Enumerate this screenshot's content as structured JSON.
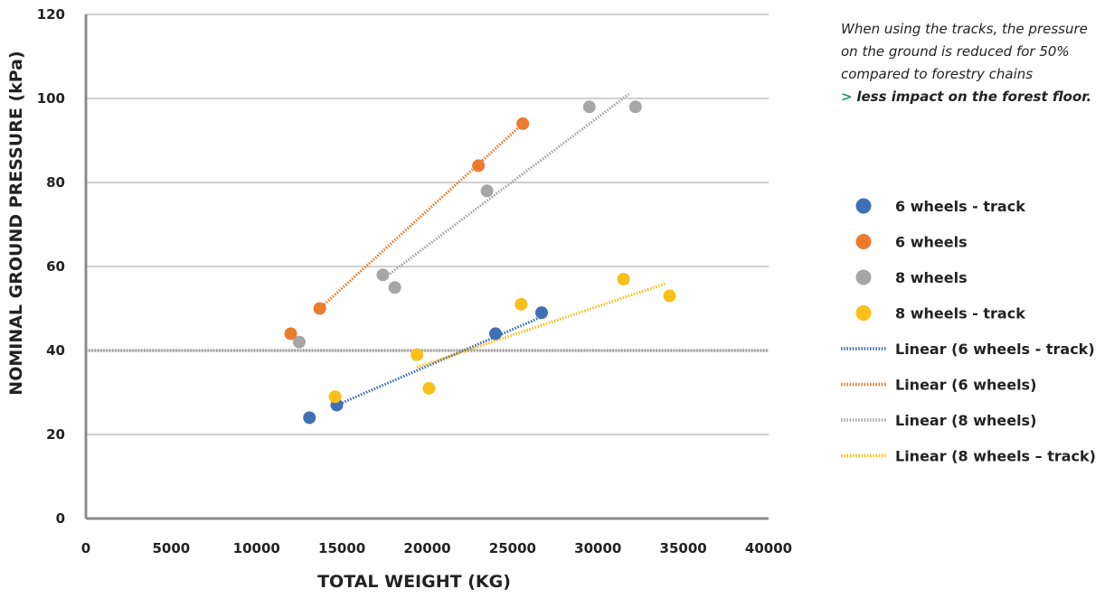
{
  "chart_data": {
    "type": "scatter",
    "xlabel": "TOTAL WEIGHT (KG)",
    "ylabel": "NOMINAL GROUND PRESSURE (kPa)",
    "xlim": [
      0,
      40000
    ],
    "ylim": [
      0,
      120
    ],
    "xticks": [
      0,
      5000,
      10000,
      15000,
      20000,
      25000,
      30000,
      35000,
      40000
    ],
    "yticks": [
      0,
      20,
      40,
      60,
      80,
      100,
      120
    ],
    "grid": "horizontal",
    "legend_position": "right",
    "reference_line": {
      "y": 40,
      "color": "#a9a9a9",
      "style": "dotted"
    },
    "series": [
      {
        "name": "6 wheels - track",
        "color": "#3f6fb5",
        "points": [
          [
            13100,
            24
          ],
          [
            14700,
            27
          ],
          [
            24000,
            44
          ],
          [
            26700,
            49
          ]
        ],
        "trend": {
          "name": "Linear (6 wheels - track)",
          "x": [
            14700,
            26700
          ],
          "y": [
            27,
            48
          ]
        }
      },
      {
        "name": "6 wheels",
        "color": "#ec7b2e",
        "points": [
          [
            12000,
            44
          ],
          [
            13700,
            50
          ],
          [
            23000,
            84
          ],
          [
            25600,
            94
          ]
        ],
        "trend": {
          "name": "Linear (6 wheels)",
          "x": [
            13700,
            25600
          ],
          "y": [
            50,
            94
          ]
        }
      },
      {
        "name": "8 wheels",
        "color": "#a6a6a6",
        "points": [
          [
            12500,
            42
          ],
          [
            17400,
            58
          ],
          [
            18100,
            55
          ],
          [
            23500,
            78
          ],
          [
            29500,
            98
          ],
          [
            32200,
            98
          ]
        ],
        "trend": {
          "name": "Linear (8 wheels)",
          "x": [
            17400,
            31800
          ],
          "y": [
            57,
            101
          ]
        }
      },
      {
        "name": "8 wheels - track",
        "color": "#fbbf1a",
        "points": [
          [
            14600,
            29
          ],
          [
            19400,
            39
          ],
          [
            20100,
            31
          ],
          [
            25500,
            51
          ],
          [
            31500,
            57
          ],
          [
            34200,
            53
          ]
        ],
        "trend": {
          "name": "Linear (8 wheels – track)",
          "x": [
            19400,
            34000
          ],
          "y": [
            36,
            56
          ]
        }
      }
    ]
  },
  "annotation": {
    "line1": "When using the tracks, the pressure",
    "line2": "on the ground is reduced for 50%",
    "line3": "compared to forestry chains",
    "arrow": ">",
    "highlight": "less impact on the forest floor."
  }
}
